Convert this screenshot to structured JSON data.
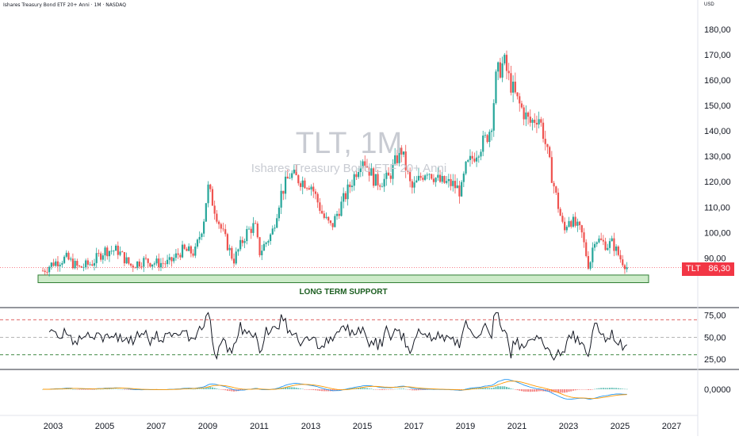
{
  "header": {
    "title": "Ishares Treasury Bond ETF 20+ Anni · 1M · NASDAQ",
    "currency": "USD"
  },
  "watermark": {
    "ticker": "TLT, 1M",
    "name": "Ishares Treasury Bond ETF 20+ Anni"
  },
  "annotations": {
    "support_label": "LONG TERM SUPPORT",
    "price_tag_symbol": "TLT",
    "price_tag_value": "86,30"
  },
  "colors": {
    "up": "#26a69a",
    "down": "#ef5350",
    "support_fill": "#cdebc9",
    "support_border": "#2e7d32",
    "rsi_line": "#131722",
    "rsi_upper": "#d32f2f",
    "rsi_lower": "#2e7d32",
    "macd_line": "#2196f3",
    "signal_line": "#ff9800",
    "last_price": "#f23645"
  },
  "chart_data": [
    {
      "type": "candlestick",
      "title": "TLT, 1M",
      "ylim": [
        76,
        185
      ],
      "x_ticks": [
        "2003",
        "2005",
        "2007",
        "2009",
        "2011",
        "2013",
        "2015",
        "2017",
        "2019",
        "2021",
        "2023",
        "2025",
        "2027"
      ],
      "y_ticks": [
        "90,00",
        "100,00",
        "110,00",
        "120,00",
        "130,00",
        "140,00",
        "150,00",
        "160,00",
        "170,00",
        "180,00"
      ],
      "last_price": 86.3,
      "support_zone": [
        80.3,
        83.3
      ],
      "x": [
        2002.6,
        2003.0,
        2003.5,
        2004.0,
        2004.5,
        2005.0,
        2005.5,
        2006.0,
        2006.5,
        2007.0,
        2007.5,
        2008.0,
        2008.5,
        2008.83,
        2009.0,
        2009.5,
        2010.0,
        2010.5,
        2010.83,
        2011.0,
        2011.5,
        2011.83,
        2012.2,
        2012.5,
        2013.0,
        2013.5,
        2013.8,
        2014.0,
        2014.5,
        2015.0,
        2015.5,
        2016.0,
        2016.5,
        2016.9,
        2017.0,
        2017.5,
        2018.0,
        2018.5,
        2018.83,
        2019.0,
        2019.5,
        2019.8,
        2020.0,
        2020.2,
        2020.5,
        2020.7,
        2021.0,
        2021.5,
        2021.83,
        2022.0,
        2022.5,
        2022.83,
        2023.0,
        2023.5,
        2023.8,
        2024.0,
        2024.5,
        2024.7,
        2025.0,
        2025.3
      ],
      "close": [
        85,
        88,
        90,
        86,
        88,
        93,
        93,
        87,
        89,
        88,
        88,
        93,
        92,
        104,
        118,
        102,
        89,
        100,
        103,
        92,
        100,
        115,
        123,
        121,
        119,
        106,
        102,
        107,
        118,
        130,
        120,
        121,
        133,
        117,
        118,
        125,
        120,
        119,
        116,
        125,
        133,
        137,
        142,
        162,
        167,
        160,
        152,
        143,
        146,
        140,
        115,
        100,
        106,
        100,
        86,
        98,
        95,
        96,
        90,
        86.3
      ],
      "ma": {
        "rsi_levels": [
          70,
          50,
          30
        ],
        "rsi_ticks": [
          "75,00",
          "50,00",
          "25,00"
        ],
        "rsi_ylim": [
          15,
          82
        ],
        "macd_ticks": [
          "0,0000"
        ]
      }
    }
  ]
}
